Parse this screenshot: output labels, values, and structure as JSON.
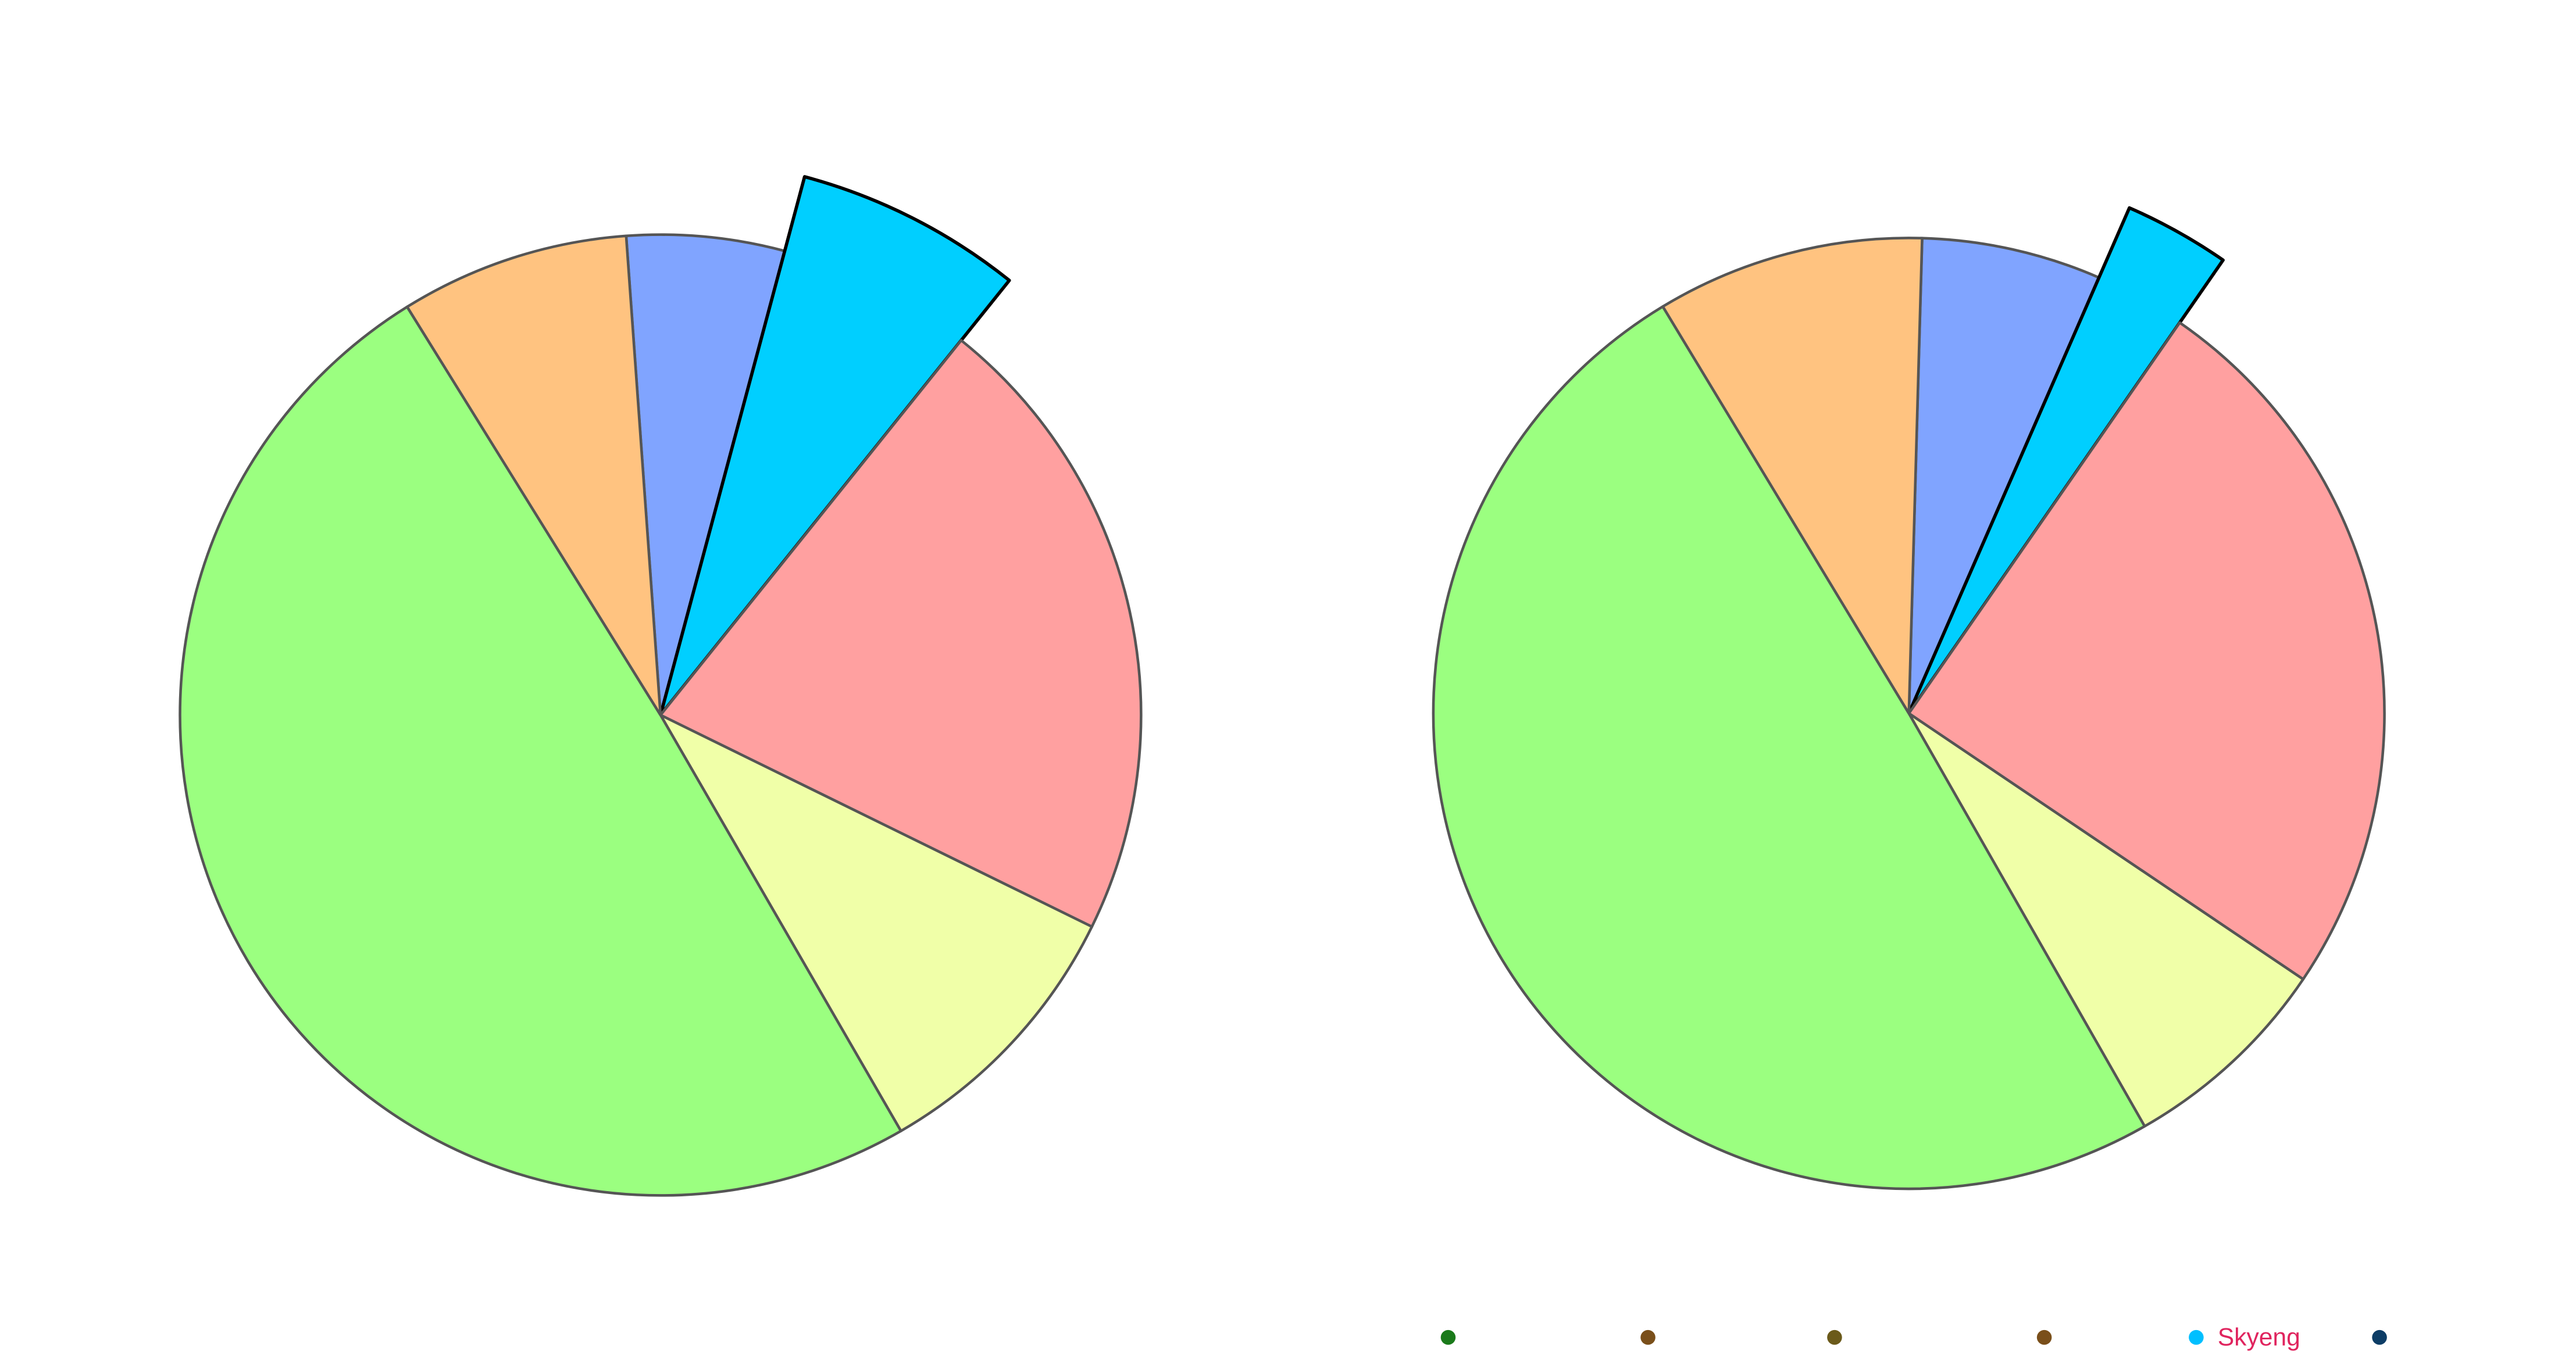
{
  "chart_data": [
    {
      "type": "pie",
      "values": [
        5.3,
        6.6,
        21.5,
        9.4,
        49.5,
        7.7
      ],
      "colors": [
        "#80a4ff",
        "#00cfff",
        "#ffa0a0",
        "#f0ffa8",
        "#9bff80",
        "#ffc380"
      ],
      "explode": [
        false,
        true,
        false,
        false,
        false,
        false
      ]
    },
    {
      "type": "pie",
      "values": [
        6.1,
        3.1,
        24.8,
        7.3,
        49.6,
        9.1
      ],
      "colors": [
        "#80a4ff",
        "#00cfff",
        "#ffa0a0",
        "#f0ffa8",
        "#9bff80",
        "#ffc380"
      ],
      "explode": [
        false,
        true,
        false,
        false,
        false,
        false
      ]
    }
  ],
  "legend": {
    "items": [
      {
        "label": null,
        "color": "#1a7a1a"
      },
      {
        "label": null,
        "color": "#7a4f1a"
      },
      {
        "label": null,
        "color": "#6b5a1a"
      },
      {
        "label": null,
        "color": "#7a4f1a"
      },
      {
        "label": "Skyeng",
        "color": "#00bfff"
      },
      {
        "label": null,
        "color": "#0d3d66"
      }
    ],
    "text_color": "#e0245e"
  }
}
